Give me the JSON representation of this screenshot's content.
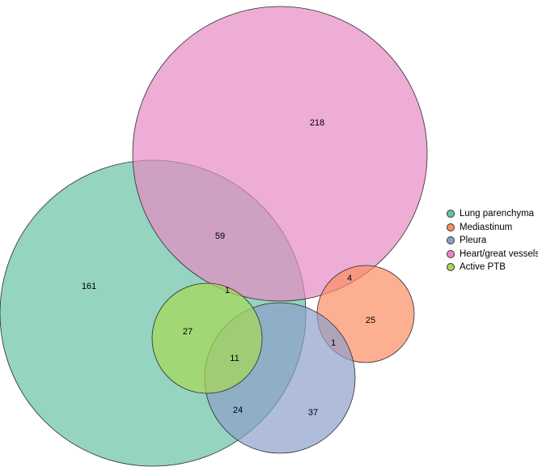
{
  "sets": [
    {
      "key": "lung",
      "name": "Lung parenchyma",
      "color": "#66c2a5"
    },
    {
      "key": "mediastinum",
      "name": "Mediastinum",
      "color": "#fc8d62"
    },
    {
      "key": "pleura",
      "name": "Pleura",
      "color": "#8da0cb"
    },
    {
      "key": "heart",
      "name": "Heart/great vessels",
      "color": "#e78ac3"
    },
    {
      "key": "ptb",
      "name": "Active PTB",
      "color": "#a6d854"
    }
  ],
  "regions": [
    {
      "sets": [
        "heart"
      ],
      "count": "218"
    },
    {
      "sets": [
        "lung",
        "heart"
      ],
      "count": "59"
    },
    {
      "sets": [
        "lung"
      ],
      "count": "161"
    },
    {
      "sets": [
        "lung",
        "heart",
        "ptb"
      ],
      "count": "1"
    },
    {
      "sets": [
        "heart",
        "mediastinum"
      ],
      "count": "4"
    },
    {
      "sets": [
        "mediastinum"
      ],
      "count": "25"
    },
    {
      "sets": [
        "mediastinum",
        "pleura"
      ],
      "count": "1"
    },
    {
      "sets": [
        "lung",
        "ptb"
      ],
      "count": "27"
    },
    {
      "sets": [
        "lung",
        "ptb",
        "pleura"
      ],
      "count": "11"
    },
    {
      "sets": [
        "lung",
        "pleura"
      ],
      "count": "24"
    },
    {
      "sets": [
        "pleura"
      ],
      "count": "37"
    }
  ]
}
